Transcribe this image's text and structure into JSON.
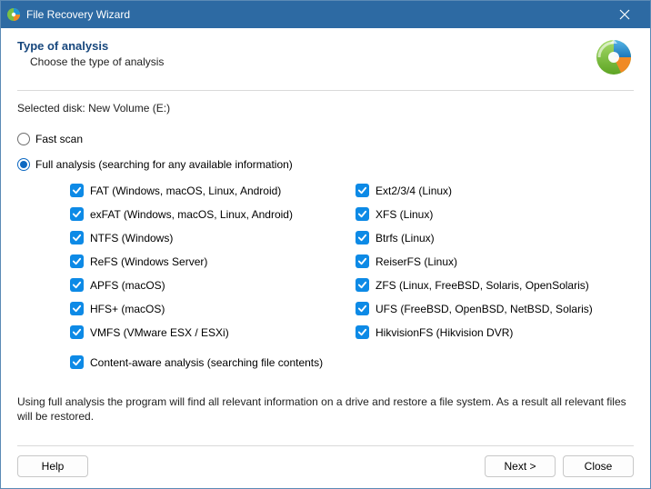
{
  "window": {
    "title": "File Recovery Wizard"
  },
  "header": {
    "title": "Type of analysis",
    "subtitle": "Choose the type of analysis"
  },
  "selectedDisk": {
    "label": "Selected disk:",
    "value": "New Volume (E:)"
  },
  "options": {
    "fastScan": {
      "label": "Fast scan",
      "checked": false
    },
    "fullAnalysis": {
      "label": "Full analysis (searching for any available information)",
      "checked": true
    }
  },
  "filesystems": {
    "left": [
      {
        "id": "fat",
        "label": "FAT (Windows, macOS, Linux, Android)",
        "checked": true
      },
      {
        "id": "exfat",
        "label": "exFAT (Windows, macOS, Linux, Android)",
        "checked": true
      },
      {
        "id": "ntfs",
        "label": "NTFS (Windows)",
        "checked": true
      },
      {
        "id": "refs",
        "label": "ReFS (Windows Server)",
        "checked": true
      },
      {
        "id": "apfs",
        "label": "APFS (macOS)",
        "checked": true
      },
      {
        "id": "hfsplus",
        "label": "HFS+ (macOS)",
        "checked": true
      },
      {
        "id": "vmfs",
        "label": "VMFS (VMware ESX / ESXi)",
        "checked": true
      }
    ],
    "right": [
      {
        "id": "ext",
        "label": "Ext2/3/4 (Linux)",
        "checked": true
      },
      {
        "id": "xfs",
        "label": "XFS (Linux)",
        "checked": true
      },
      {
        "id": "btrfs",
        "label": "Btrfs (Linux)",
        "checked": true
      },
      {
        "id": "reiserfs",
        "label": "ReiserFS (Linux)",
        "checked": true
      },
      {
        "id": "zfs",
        "label": "ZFS (Linux, FreeBSD, Solaris, OpenSolaris)",
        "checked": true
      },
      {
        "id": "ufs",
        "label": "UFS (FreeBSD, OpenBSD, NetBSD, Solaris)",
        "checked": true
      },
      {
        "id": "hikvisionfs",
        "label": "HikvisionFS (Hikvision DVR)",
        "checked": true
      }
    ]
  },
  "contentAware": {
    "label": "Content-aware analysis (searching file contents)",
    "checked": true
  },
  "description": "Using full analysis the program will find all relevant information on a drive and restore a file system. As a result all relevant files will be restored.",
  "buttons": {
    "help": "Help",
    "next": "Next >",
    "close": "Close"
  },
  "colors": {
    "titlebar": "#2d6aa3",
    "accent": "#0d68c1",
    "checkbox": "#0d8ae6",
    "headerText": "#17477d",
    "heroGreen": "#7bc043",
    "heroBlue": "#2196d4",
    "heroOrange": "#f08a24"
  }
}
